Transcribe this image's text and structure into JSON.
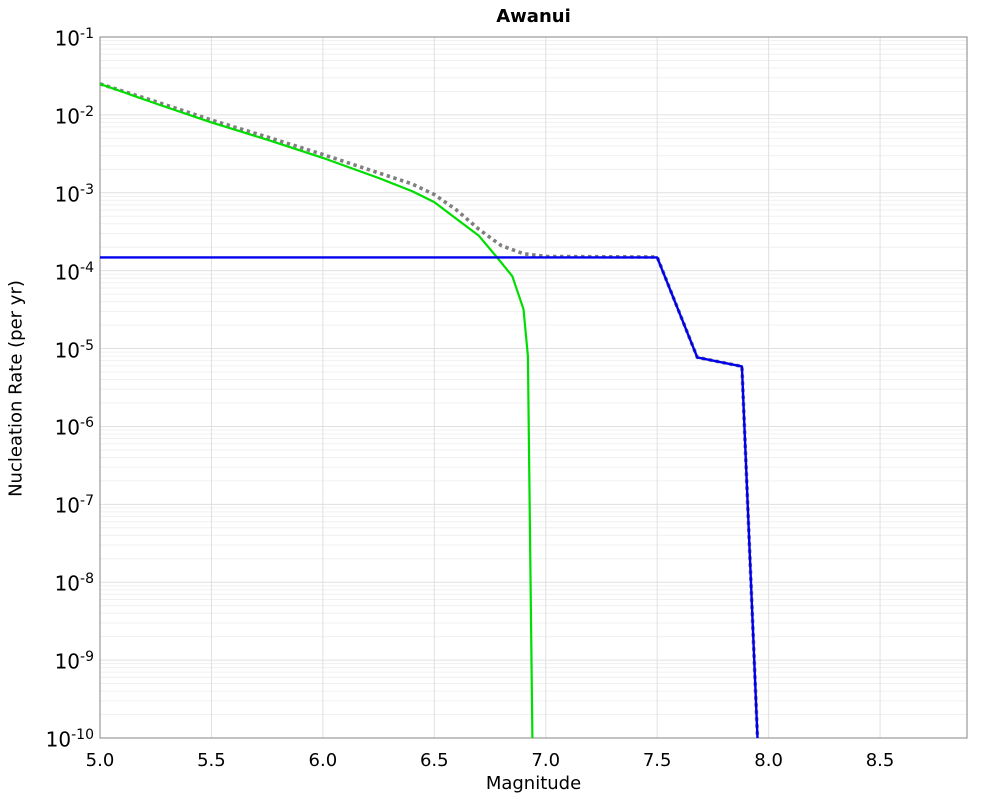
{
  "window": {
    "title": "Awanui"
  },
  "chart_data": {
    "type": "line",
    "title": "Awanui",
    "xlabel": "Magnitude",
    "ylabel": "Nucleation Rate (per yr)",
    "x_range": [
      5.0,
      8.89
    ],
    "y_log_range": [
      -10,
      -1
    ],
    "x_tick_values": [
      5.0,
      5.5,
      6.0,
      6.5,
      7.0,
      7.5,
      8.0,
      8.5
    ],
    "x_tick_labels": [
      "5.0",
      "5.5",
      "6.0",
      "6.5",
      "7.0",
      "7.5",
      "8.0",
      "8.5"
    ],
    "y_tick_exponents": [
      -1,
      -2,
      -3,
      -4,
      -5,
      -6,
      -7,
      -8,
      -9,
      -10
    ],
    "grid": {
      "major_color": "#e0e0e0",
      "minor_color": "#f0f0f0",
      "border_color": "#999999",
      "horizontal_minor": true,
      "vertical_minor": false,
      "legend": "none"
    },
    "series": [
      {
        "name": "dotted-tapered-rate",
        "color": "#7f7f7f",
        "style": "dotted",
        "width": 3.6,
        "points": [
          [
            5.0,
            0.025
          ],
          [
            5.25,
            0.0148
          ],
          [
            5.5,
            0.0086
          ],
          [
            5.75,
            0.0052
          ],
          [
            6.0,
            0.0031
          ],
          [
            6.25,
            0.0018
          ],
          [
            6.4,
            0.0013
          ],
          [
            6.5,
            0.00095
          ],
          [
            6.6,
            0.0006
          ],
          [
            6.7,
            0.00034
          ],
          [
            6.8,
            0.00021
          ],
          [
            6.9,
            0.000165
          ],
          [
            7.0,
            0.000152
          ],
          [
            7.5,
            0.00015
          ],
          [
            7.68,
            7.7e-06
          ],
          [
            7.88,
            5.9e-06
          ],
          [
            7.95,
            1e-10
          ]
        ]
      },
      {
        "name": "green-gr-rate",
        "color": "#00dd00",
        "style": "solid",
        "width": 2.2,
        "points": [
          [
            5.0,
            0.025
          ],
          [
            5.25,
            0.014
          ],
          [
            5.5,
            0.008
          ],
          [
            5.75,
            0.0048
          ],
          [
            6.0,
            0.0028
          ],
          [
            6.25,
            0.00155
          ],
          [
            6.4,
            0.00105
          ],
          [
            6.5,
            0.00076
          ],
          [
            6.6,
            0.00046
          ],
          [
            6.7,
            0.00028
          ],
          [
            6.78,
            0.00015
          ],
          [
            6.85,
            8.5e-05
          ],
          [
            6.9,
            3.2e-05
          ],
          [
            6.92,
            8e-06
          ],
          [
            6.94,
            1e-10
          ]
        ]
      },
      {
        "name": "blue-floor-rate",
        "color": "#0000ee",
        "style": "solid",
        "width": 2.4,
        "points": [
          [
            5.0,
            0.000148
          ],
          [
            7.5,
            0.000148
          ],
          [
            7.68,
            7.7e-06
          ],
          [
            7.88,
            5.9e-06
          ],
          [
            7.95,
            1e-10
          ]
        ]
      }
    ]
  }
}
